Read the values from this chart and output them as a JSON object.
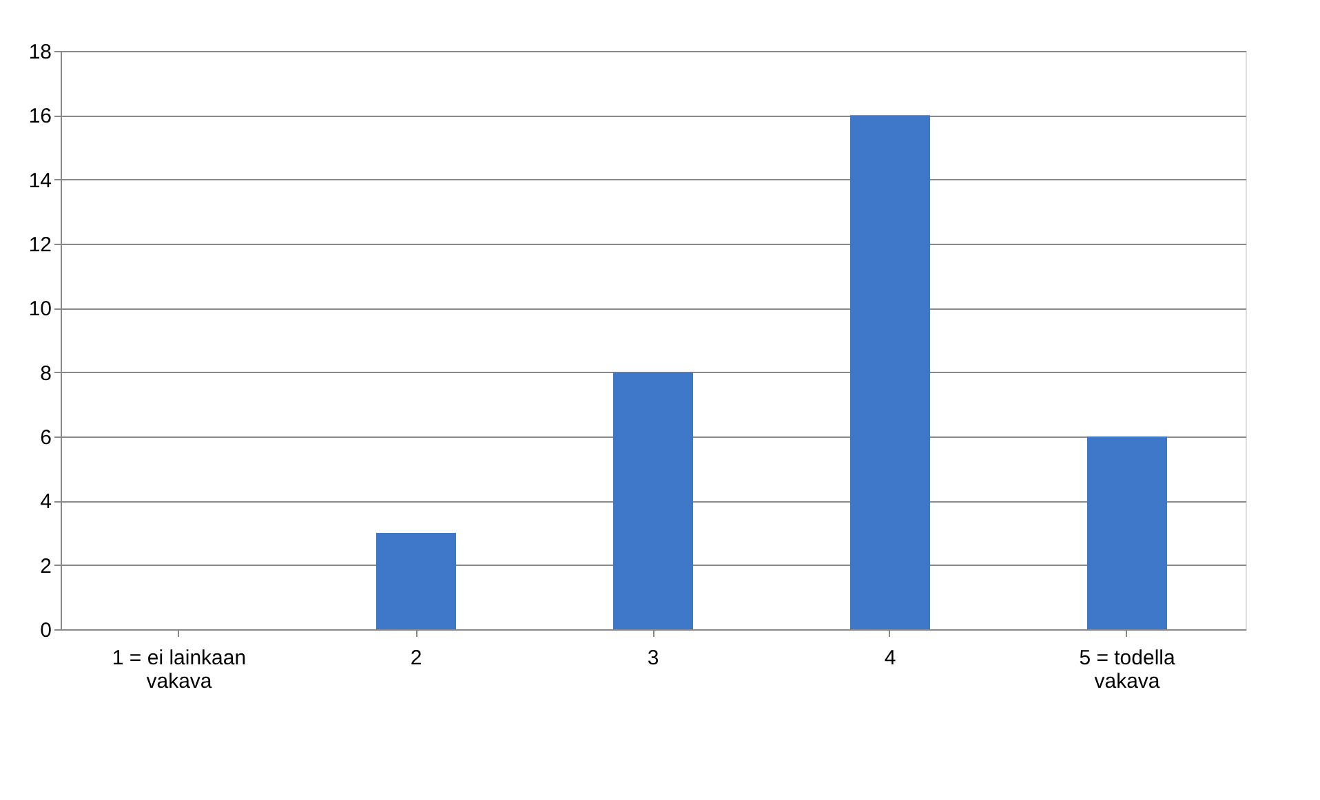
{
  "chart_data": {
    "type": "bar",
    "categories": [
      "1 = ei lainkaan vakava",
      "2",
      "3",
      "4",
      "5 = todella vakava"
    ],
    "values": [
      0,
      3,
      8,
      16,
      6
    ],
    "color": "#3f78c8",
    "ylim": [
      0,
      18
    ],
    "yticks": [
      0,
      2,
      4,
      6,
      8,
      10,
      12,
      14,
      16,
      18
    ],
    "grid": "y"
  }
}
